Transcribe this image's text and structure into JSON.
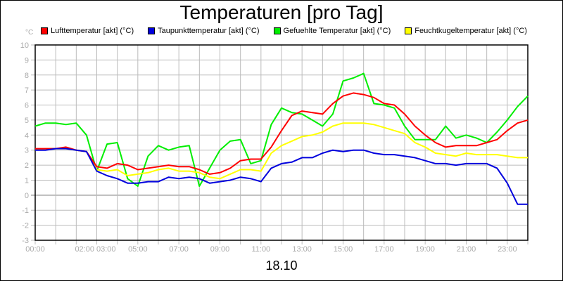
{
  "chart_data": {
    "type": "line",
    "title": "Temperaturen [pro Tag]",
    "xlabel": "18.10",
    "ylabel": "°C",
    "ylim": [
      -3,
      10
    ],
    "yticks": [
      10,
      9,
      8,
      7,
      6,
      5,
      4,
      3,
      2,
      1,
      0,
      -1,
      -2,
      -3
    ],
    "xticks": [
      "00:00",
      "02:00 03:00",
      "05:00",
      "07:00",
      "09:00",
      "11:00",
      "13:00",
      "15:00",
      "17:00",
      "19:00",
      "21:00",
      "23:00"
    ],
    "xtick_hours": [
      0,
      2.5,
      5,
      7,
      9,
      11,
      13,
      15,
      17,
      19,
      21,
      23
    ],
    "x_hours": [
      0,
      0.5,
      1,
      1.5,
      2,
      2.5,
      3,
      3.5,
      4,
      4.5,
      5,
      5.5,
      6,
      6.5,
      7,
      7.5,
      8,
      8.5,
      9,
      9.5,
      10,
      10.5,
      11,
      11.5,
      12,
      12.5,
      13,
      13.5,
      14,
      14.5,
      15,
      15.5,
      16,
      16.5,
      17,
      17.5,
      18,
      18.5,
      19,
      19.5,
      20,
      20.5,
      21,
      21.5,
      22,
      22.5,
      23,
      23.5,
      24
    ],
    "grid": true,
    "legend_position": "top",
    "series": [
      {
        "name": "Lufttemperatur [akt] (°C)",
        "color": "#ff0000",
        "values": [
          3.1,
          3.1,
          3.1,
          3.2,
          3.0,
          2.9,
          1.9,
          1.8,
          2.1,
          2.0,
          1.7,
          1.8,
          1.9,
          2.0,
          1.9,
          1.9,
          1.7,
          1.4,
          1.5,
          1.8,
          2.3,
          2.4,
          2.4,
          3.2,
          4.3,
          5.3,
          5.6,
          5.5,
          5.4,
          6.1,
          6.6,
          6.8,
          6.7,
          6.5,
          6.1,
          6.0,
          5.4,
          4.6,
          4.0,
          3.5,
          3.2,
          3.3,
          3.3,
          3.3,
          3.5,
          3.7,
          4.3,
          4.8,
          5.0
        ]
      },
      {
        "name": "Taupunkttemperatur [akt] (°C)",
        "color": "#0000dd",
        "values": [
          3.0,
          3.0,
          3.1,
          3.1,
          3.0,
          2.9,
          1.6,
          1.3,
          1.1,
          0.8,
          0.8,
          0.9,
          0.9,
          1.2,
          1.1,
          1.2,
          1.1,
          0.8,
          0.9,
          1.0,
          1.2,
          1.1,
          0.9,
          1.8,
          2.1,
          2.2,
          2.5,
          2.5,
          2.8,
          3.0,
          2.9,
          3.0,
          3.0,
          2.8,
          2.7,
          2.7,
          2.6,
          2.5,
          2.3,
          2.1,
          2.1,
          2.0,
          2.1,
          2.1,
          2.1,
          1.8,
          0.8,
          -0.6,
          -0.6
        ]
      },
      {
        "name": "Gefuehlte Temperatur [akt] (°C)",
        "color": "#00ee00",
        "values": [
          4.6,
          4.8,
          4.8,
          4.7,
          4.8,
          4.0,
          1.6,
          3.4,
          3.5,
          1.1,
          0.6,
          2.6,
          3.3,
          3.0,
          3.2,
          3.3,
          0.6,
          1.8,
          3.0,
          3.6,
          3.7,
          2.1,
          2.3,
          4.7,
          5.8,
          5.5,
          5.4,
          5.0,
          4.6,
          5.4,
          7.6,
          7.8,
          8.1,
          6.1,
          6.0,
          5.8,
          4.6,
          3.7,
          3.7,
          3.7,
          4.6,
          3.8,
          4.0,
          3.8,
          3.5,
          4.2,
          5.0,
          5.9,
          6.6
        ]
      },
      {
        "name": "Feuchtkugeltemperatur [akt] (°C)",
        "color": "#ffff00",
        "values": [
          3.0,
          3.1,
          3.1,
          3.1,
          3.0,
          2.9,
          1.7,
          1.6,
          1.7,
          1.3,
          1.4,
          1.5,
          1.7,
          1.8,
          1.6,
          1.6,
          1.5,
          1.2,
          1.1,
          1.4,
          1.7,
          1.7,
          1.6,
          2.8,
          3.3,
          3.6,
          3.9,
          4.0,
          4.2,
          4.6,
          4.8,
          4.8,
          4.8,
          4.7,
          4.5,
          4.3,
          4.1,
          3.5,
          3.2,
          2.8,
          2.7,
          2.6,
          2.8,
          2.7,
          2.7,
          2.7,
          2.6,
          2.5,
          2.5
        ]
      }
    ]
  },
  "page": {
    "title": "Temperaturen [pro Tag]",
    "unit": "°C",
    "date": "18.10"
  }
}
